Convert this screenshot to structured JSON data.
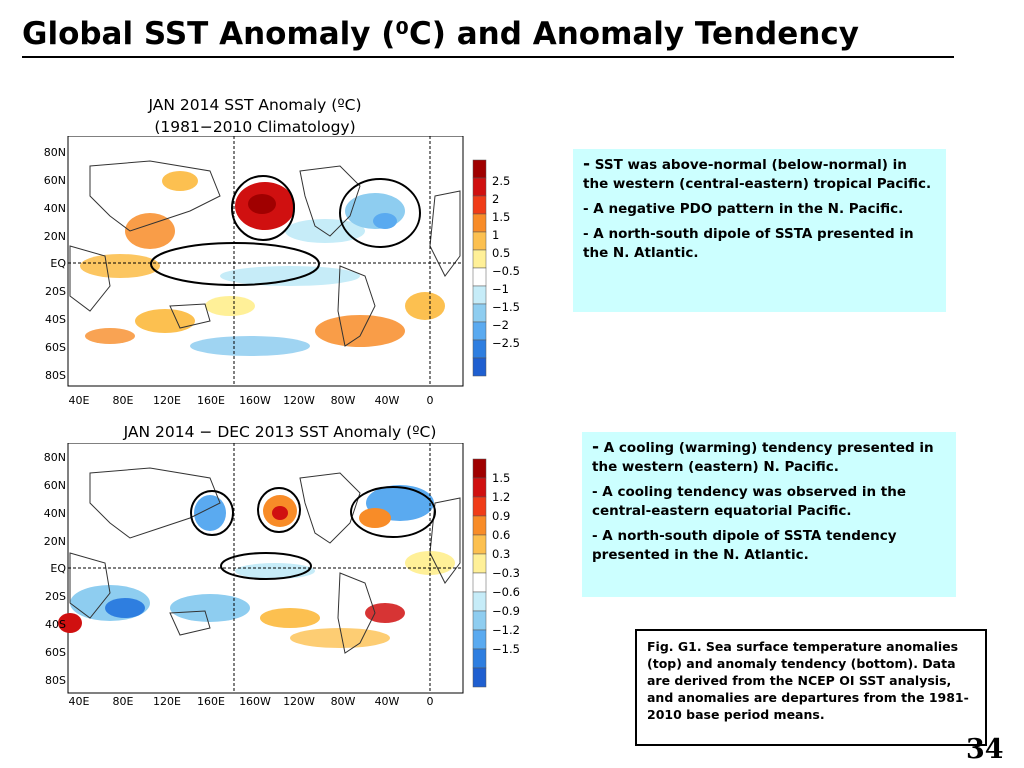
{
  "title": "Global SST Anomaly (⁰C) and Anomaly Tendency",
  "top_map": {
    "title_line1": "JAN 2014 SST Anomaly (ºC)",
    "title_line2": "(1981−2010 Climatology)",
    "lat_labels": [
      "80N",
      "60N",
      "40N",
      "20N",
      "EQ",
      "20S",
      "40S",
      "60S",
      "80S"
    ],
    "lon_labels": [
      "40E",
      "80E",
      "120E",
      "160E",
      "160W",
      "120W",
      "80W",
      "40W",
      "0"
    ],
    "colorbar_labels": [
      "2.5",
      "2",
      "1.5",
      "1",
      "0.5",
      "−0.5",
      "−1",
      "−1.5",
      "−2",
      "−2.5"
    ],
    "colors": [
      "#a00000",
      "#d01010",
      "#f03c18",
      "#f88c28",
      "#fcc050",
      "#fff098",
      "#ffffff",
      "#c6ecf8",
      "#8ecdf0",
      "#5aaaf0",
      "#2e7ee0",
      "#1f5fd0"
    ]
  },
  "bottom_map": {
    "title": "JAN 2014 − DEC 2013 SST Anomaly (ºC)",
    "lat_labels": [
      "80N",
      "60N",
      "40N",
      "20N",
      "EQ",
      "20S",
      "40S",
      "60S",
      "80S"
    ],
    "lon_labels": [
      "40E",
      "80E",
      "120E",
      "160E",
      "160W",
      "120W",
      "80W",
      "40W",
      "0"
    ],
    "colorbar_labels": [
      "1.5",
      "1.2",
      "0.9",
      "0.6",
      "0.3",
      "−0.3",
      "−0.6",
      "−0.9",
      "−1.2",
      "−1.5"
    ],
    "colors": [
      "#a00000",
      "#d01010",
      "#f03c18",
      "#f88c28",
      "#fcc050",
      "#fff098",
      "#ffffff",
      "#c6ecf8",
      "#8ecdf0",
      "#5aaaf0",
      "#2e7ee0",
      "#1f5fd0"
    ]
  },
  "box1": {
    "items": [
      {
        "dash": "-",
        "text": " SST was above-normal (below-normal) in the western (central-eastern) tropical Pacific."
      },
      {
        "dash": "-",
        "text": " A negative PDO pattern in the N. Pacific."
      },
      {
        "dash": "-",
        "text": " A north-south dipole of SSTA presented in the N. Atlantic."
      }
    ]
  },
  "box2": {
    "items": [
      {
        "dash": "-",
        "text": " A cooling (warming) tendency presented in the western (eastern) N. Pacific."
      },
      {
        "dash": "-",
        "text": " A cooling tendency was observed in the central-eastern equatorial Pacific."
      },
      {
        "dash": "-",
        "text": " A north-south dipole of SSTA tendency presented in the N. Atlantic."
      }
    ]
  },
  "caption": "Fig. G1. Sea surface temperature anomalies (top) and anomaly tendency (bottom). Data are derived from the NCEP OI SST analysis, and anomalies are departures from the 1981-2010 base period means.",
  "slide_number": "34",
  "box_color": "#ccffff"
}
